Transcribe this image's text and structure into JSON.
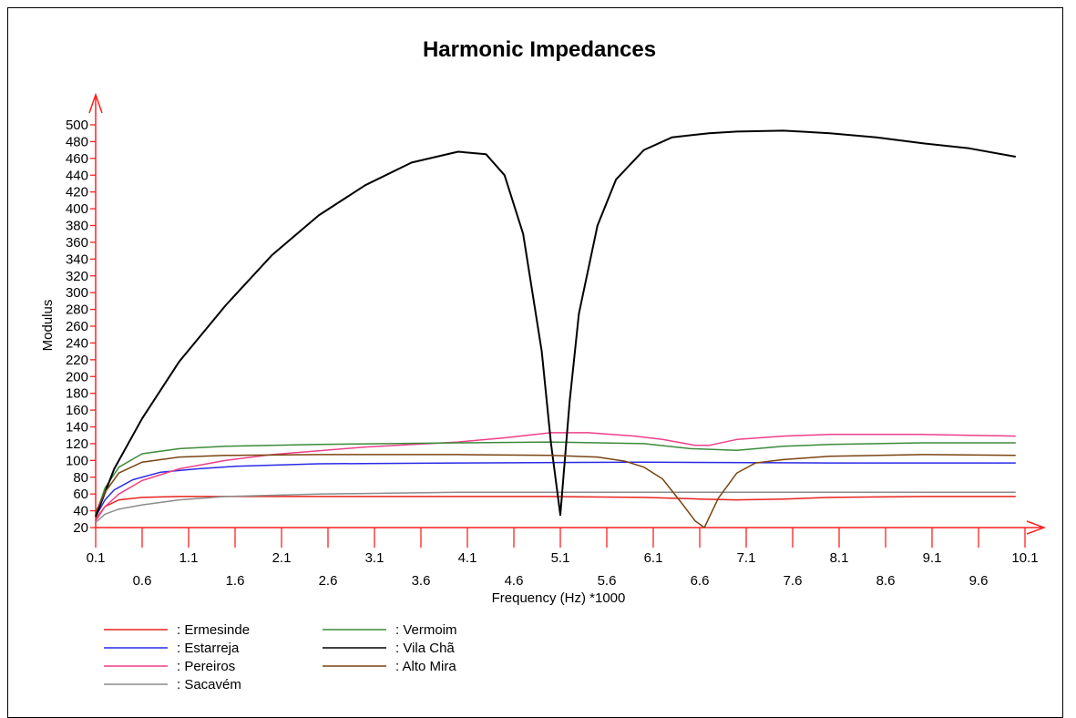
{
  "chart_data": {
    "type": "line",
    "title": "Harmonic Impedances",
    "xlabel": "Frequency (Hz) *1000",
    "ylabel": "Modulus",
    "xlim": [
      0.1,
      10.1
    ],
    "ylim": [
      20,
      500
    ],
    "x_ticks_top": [
      "0.1",
      "1.1",
      "2.1",
      "3.1",
      "4.1",
      "5.1",
      "6.1",
      "7.1",
      "8.1",
      "9.1",
      "10.1"
    ],
    "x_ticks_bottom": [
      "0.6",
      "1.6",
      "2.6",
      "3.6",
      "4.6",
      "5.6",
      "6.6",
      "7.6",
      "8.6",
      "9.6"
    ],
    "y_ticks": [
      "20",
      "40",
      "60",
      "80",
      "100",
      "120",
      "140",
      "160",
      "180",
      "200",
      "220",
      "240",
      "260",
      "280",
      "300",
      "320",
      "340",
      "360",
      "380",
      "400",
      "420",
      "440",
      "460",
      "480",
      "500"
    ],
    "grid": false,
    "legend_position": "bottom-left",
    "series": [
      {
        "name": ": Ermesinde",
        "color": "#e8231f",
        "x": [
          0.1,
          0.2,
          0.35,
          0.6,
          1.0,
          2.0,
          4.0,
          5.0,
          6.0,
          6.6,
          7.0,
          7.5,
          8.0,
          9.0,
          10.0
        ],
        "y": [
          30,
          45,
          53,
          56,
          57,
          57,
          57,
          57,
          56,
          54,
          53,
          54,
          56,
          57,
          57
        ]
      },
      {
        "name": ": Estarreja",
        "color": "#2a2ae6",
        "x": [
          0.1,
          0.2,
          0.3,
          0.5,
          0.8,
          1.2,
          1.6,
          2.5,
          4.0,
          6.0,
          8.0,
          10.0
        ],
        "y": [
          33,
          53,
          65,
          77,
          86,
          90,
          93,
          96,
          97,
          98,
          97,
          97
        ]
      },
      {
        "name": ": Pereiros",
        "color": "#ee3f8a",
        "x": [
          0.1,
          0.2,
          0.35,
          0.6,
          1.0,
          1.5,
          2.0,
          3.0,
          4.0,
          4.5,
          5.0,
          5.4,
          5.9,
          6.2,
          6.55,
          6.7,
          7.0,
          7.5,
          8.0,
          9.0,
          10.0
        ],
        "y": [
          28,
          45,
          60,
          76,
          90,
          100,
          107,
          116,
          122,
          127,
          133,
          133,
          129,
          125,
          118,
          118,
          125,
          129,
          131,
          131,
          129
        ]
      },
      {
        "name": ": Sacavém",
        "color": "#8c8c8c",
        "x": [
          0.1,
          0.2,
          0.35,
          0.6,
          1.0,
          1.5,
          2.5,
          4.0,
          6.0,
          8.0,
          10.0
        ],
        "y": [
          26,
          36,
          42,
          47,
          53,
          57,
          60,
          62,
          62,
          62,
          62
        ]
      },
      {
        "name": ": Vermoim",
        "color": "#3c8a3c",
        "x": [
          0.1,
          0.2,
          0.35,
          0.6,
          1.0,
          1.5,
          2.5,
          4.0,
          5.0,
          6.0,
          6.5,
          7.0,
          7.5,
          8.0,
          9.0,
          10.0
        ],
        "y": [
          35,
          67,
          92,
          108,
          114,
          117,
          119,
          121,
          122,
          120,
          114,
          112,
          117,
          119,
          121,
          121
        ]
      },
      {
        "name": ": Vila Chã",
        "color": "#000000",
        "x": [
          0.1,
          0.3,
          0.6,
          1.0,
          1.5,
          2.0,
          2.5,
          3.0,
          3.5,
          4.0,
          4.3,
          4.5,
          4.7,
          4.9,
          5.0,
          5.1,
          5.2,
          5.3,
          5.5,
          5.7,
          6.0,
          6.3,
          6.7,
          7.0,
          7.5,
          8.0,
          8.5,
          9.0,
          9.5,
          10.0
        ],
        "y": [
          33,
          90,
          150,
          218,
          285,
          345,
          392,
          428,
          455,
          468,
          465,
          440,
          370,
          230,
          120,
          35,
          170,
          275,
          380,
          435,
          470,
          485,
          490,
          492,
          493,
          490,
          485,
          478,
          472,
          462
        ]
      },
      {
        "name": ": Alto Mira",
        "color": "#7a4412",
        "x": [
          0.1,
          0.2,
          0.35,
          0.6,
          1.0,
          1.5,
          2.5,
          4.0,
          5.0,
          5.5,
          5.8,
          6.0,
          6.2,
          6.4,
          6.55,
          6.65,
          6.8,
          7.0,
          7.2,
          7.5,
          8.0,
          9.0,
          10.0
        ],
        "y": [
          38,
          62,
          85,
          98,
          104,
          106,
          107,
          107,
          106,
          104,
          99,
          92,
          78,
          50,
          28,
          20,
          55,
          85,
          97,
          101,
          105,
          107,
          106
        ]
      }
    ]
  }
}
